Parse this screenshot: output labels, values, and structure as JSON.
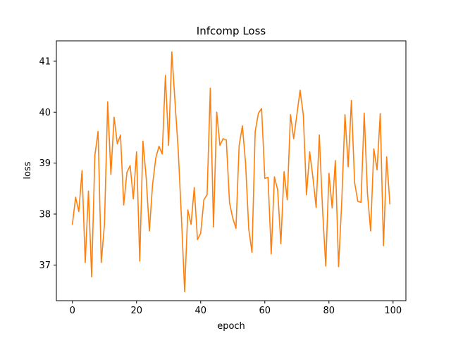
{
  "chart_data": {
    "type": "line",
    "title": "Infcomp Loss",
    "xlabel": "epoch",
    "ylabel": "loss",
    "xlim": [
      -5,
      104
    ],
    "ylim": [
      36.3,
      41.4
    ],
    "xticks": [
      0,
      20,
      40,
      60,
      80,
      100
    ],
    "yticks": [
      37,
      38,
      39,
      40,
      41
    ],
    "grid": false,
    "colors": {
      "series": "#ff7f0e",
      "axes": "#000000",
      "background": "#ffffff"
    },
    "series": [
      {
        "x": [
          0,
          1,
          2,
          3,
          4,
          5,
          6,
          7,
          8,
          9,
          10,
          11,
          12,
          13,
          14,
          15,
          16,
          17,
          18,
          19,
          20,
          21,
          22,
          23,
          24,
          25,
          26,
          27,
          28,
          29,
          30,
          31,
          32,
          33,
          34,
          35,
          36,
          37,
          38,
          39,
          40,
          41,
          42,
          43,
          44,
          45,
          46,
          47,
          48,
          49,
          50,
          51,
          52,
          53,
          54,
          55,
          56,
          57,
          58,
          59,
          60,
          61,
          62,
          63,
          64,
          65,
          66,
          67,
          68,
          69,
          70,
          71,
          72,
          73,
          74,
          75,
          76,
          77,
          78,
          79,
          80,
          81,
          82,
          83,
          84,
          85,
          86,
          87,
          88,
          89,
          90,
          91,
          92,
          93,
          94,
          95,
          96,
          97,
          98,
          99
        ],
        "values": [
          37.8,
          38.33,
          38.05,
          38.85,
          37.05,
          38.45,
          36.77,
          39.15,
          39.62,
          37.05,
          37.8,
          40.2,
          38.78,
          39.9,
          39.38,
          39.55,
          38.18,
          38.82,
          38.95,
          38.3,
          39.22,
          37.08,
          39.43,
          38.72,
          37.67,
          38.58,
          39.1,
          39.33,
          39.18,
          40.72,
          39.35,
          41.18,
          40.2,
          39.25,
          37.93,
          36.48,
          38.08,
          37.8,
          38.52,
          37.5,
          37.62,
          38.28,
          38.38,
          40.47,
          37.75,
          40.0,
          39.35,
          39.48,
          39.45,
          38.22,
          37.92,
          37.72,
          39.35,
          39.73,
          39.0,
          37.7,
          37.25,
          39.62,
          39.98,
          40.07,
          38.7,
          38.72,
          37.22,
          38.73,
          38.48,
          37.42,
          38.83,
          38.28,
          39.95,
          39.48,
          39.95,
          40.43,
          39.95,
          38.38,
          39.22,
          38.72,
          38.13,
          39.55,
          38.1,
          36.98,
          38.8,
          38.12,
          39.05,
          36.97,
          38.25,
          39.95,
          38.93,
          40.23,
          38.62,
          38.25,
          38.23,
          39.98,
          38.42,
          37.67,
          39.28,
          38.87,
          39.97,
          37.38,
          39.12,
          38.2
        ]
      }
    ]
  }
}
